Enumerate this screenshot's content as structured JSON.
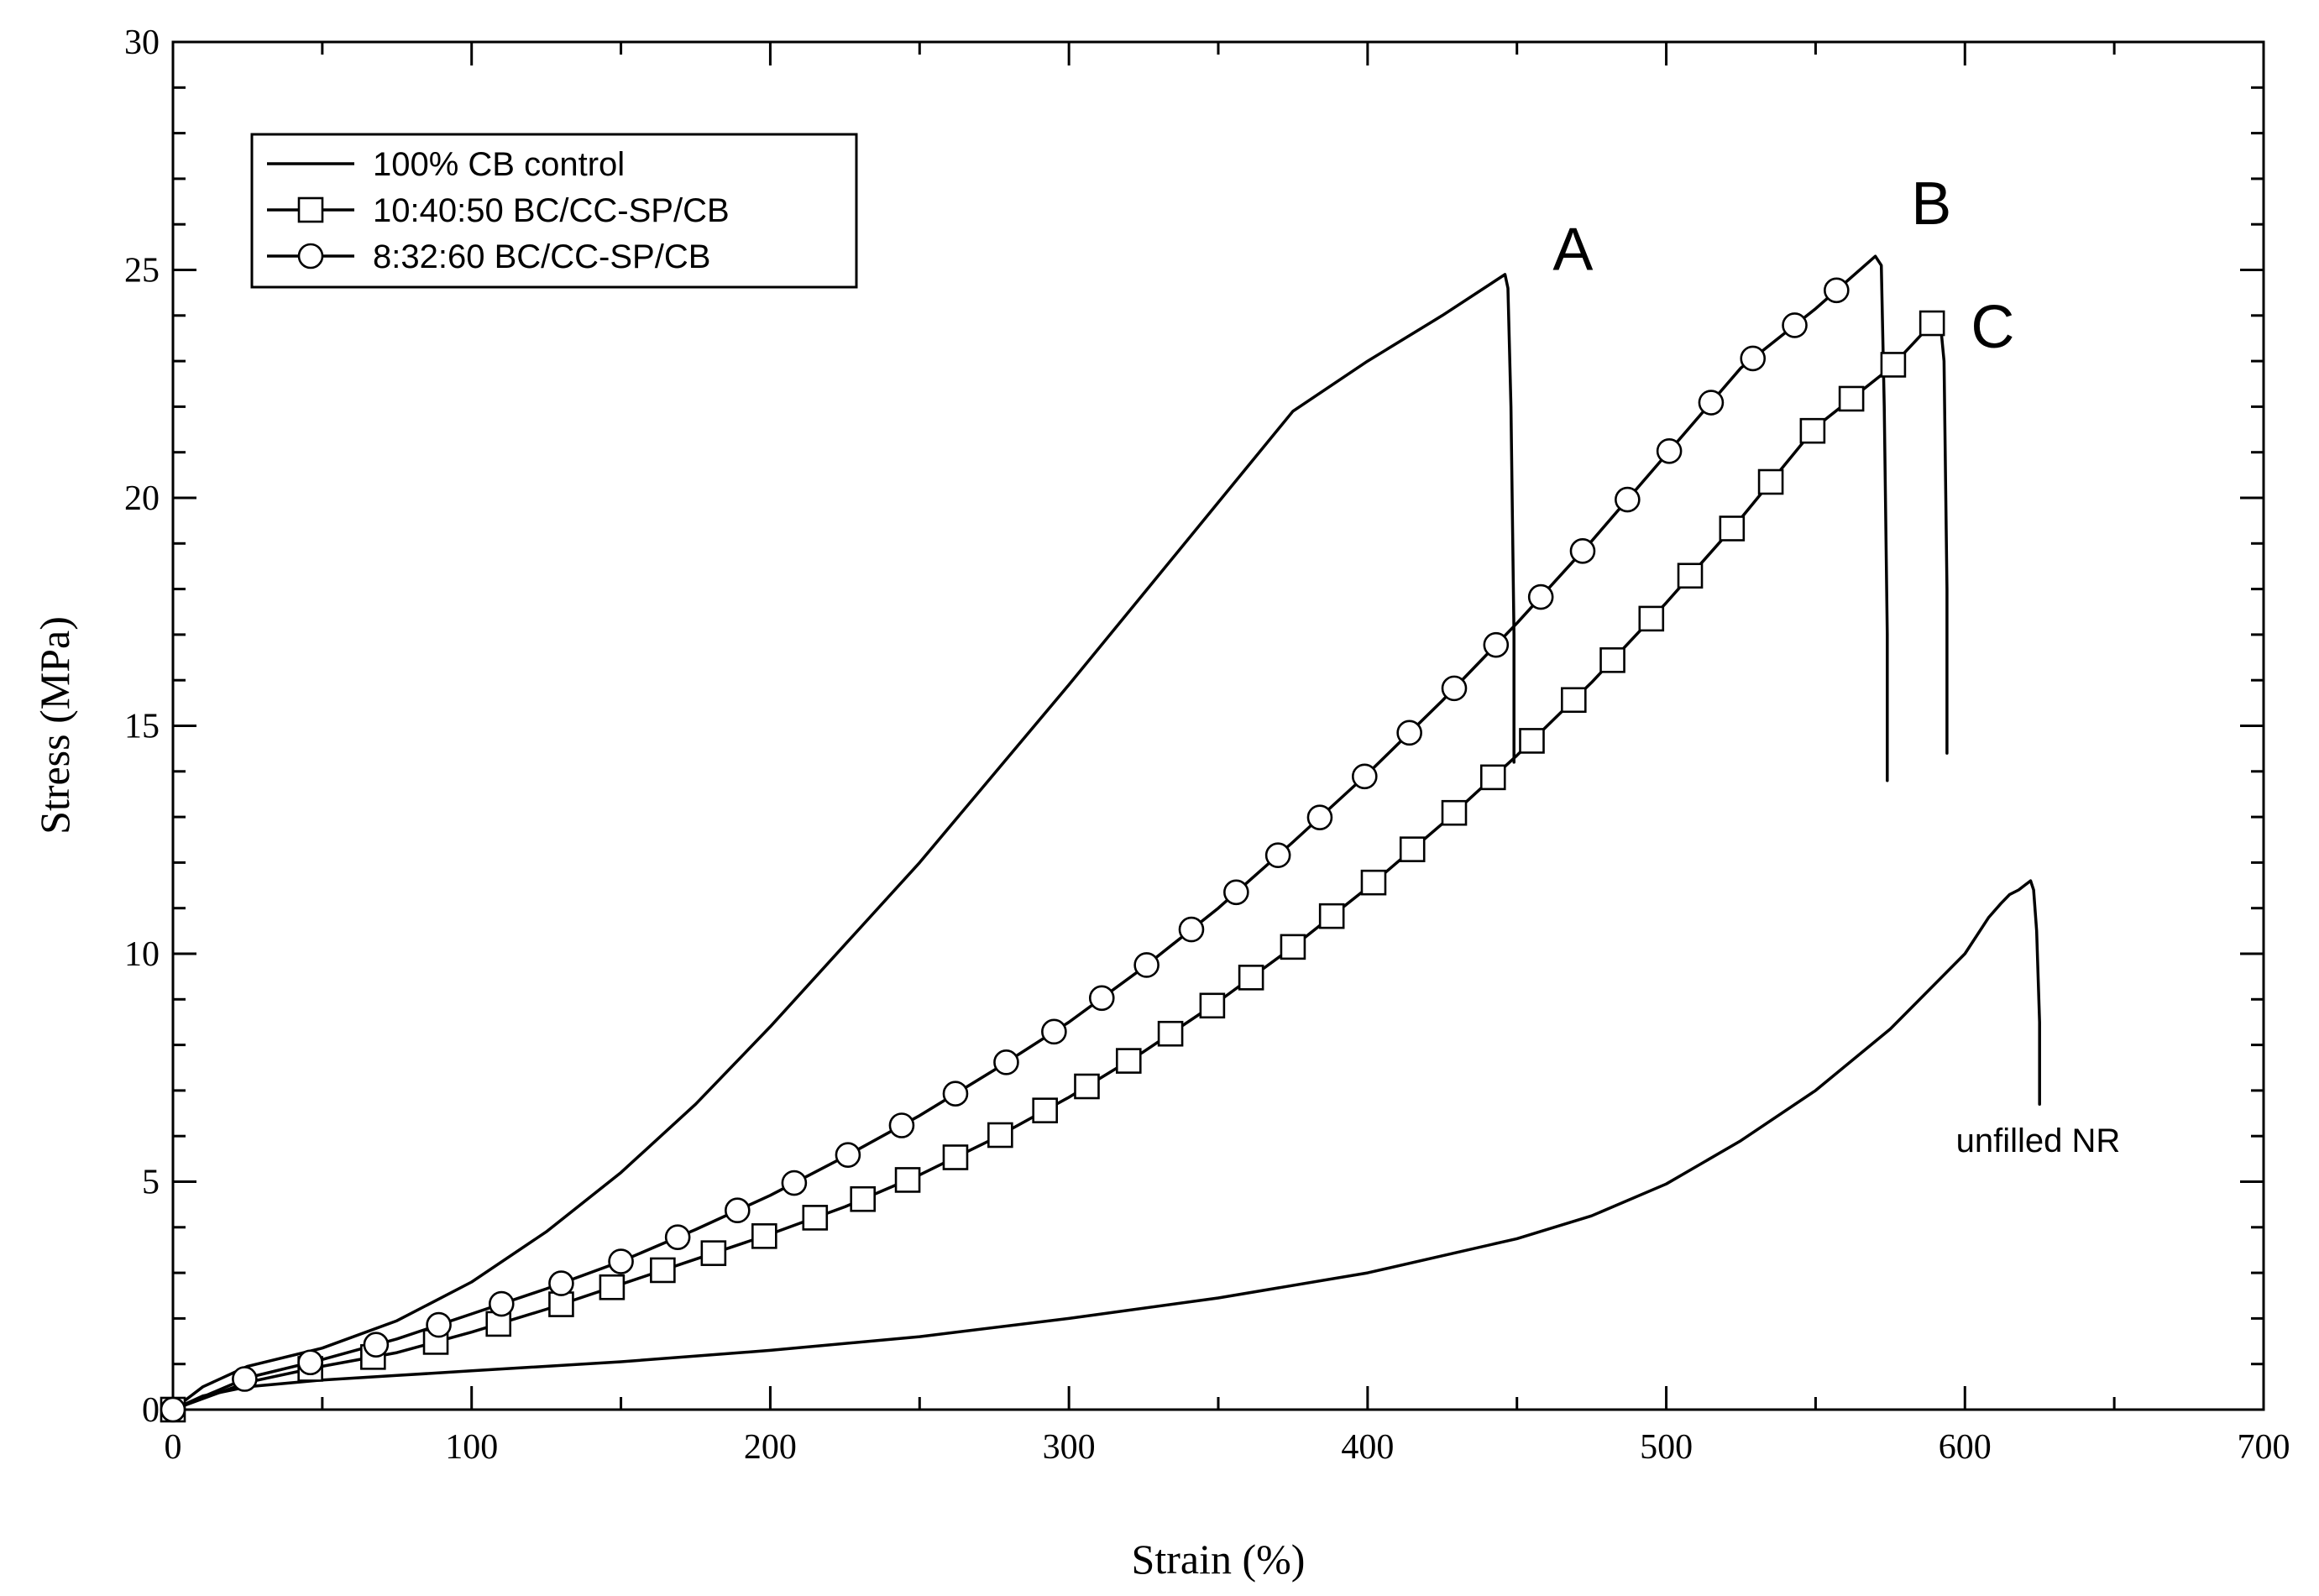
{
  "chart_data": {
    "type": "line",
    "title": "",
    "xlabel": "Strain (%)",
    "ylabel": "Stress (MPa)",
    "xlim": [
      0,
      700
    ],
    "ylim": [
      0,
      30
    ],
    "xticks": [
      0,
      100,
      200,
      300,
      400,
      500,
      600,
      700
    ],
    "yticks": [
      0,
      5,
      10,
      15,
      20,
      25,
      30
    ],
    "grid": false,
    "legend_position": "top-left",
    "series": [
      {
        "name": "100% CB control",
        "marker": "none",
        "x": [
          0,
          10,
          25,
          50,
          75,
          100,
          125,
          150,
          175,
          200,
          225,
          250,
          275,
          300,
          325,
          350,
          375,
          400,
          425,
          446,
          447,
          448,
          449,
          449
        ],
        "y": [
          0,
          0.5,
          0.95,
          1.35,
          1.95,
          2.8,
          3.9,
          5.2,
          6.7,
          8.4,
          10.2,
          12.0,
          13.95,
          15.9,
          17.9,
          19.9,
          21.9,
          23.0,
          24.0,
          24.9,
          24.6,
          22.0,
          17.0,
          14.2
        ]
      },
      {
        "name": "10:40:50 BC/CC-SP/CB",
        "marker": "square",
        "marker_x": [
          0,
          46,
          67,
          88,
          109,
          130,
          147,
          164,
          181,
          198,
          215,
          231,
          246,
          262,
          277,
          292,
          306,
          320,
          334,
          348,
          361,
          375,
          388,
          402,
          415,
          429,
          442,
          455,
          469,
          482,
          495,
          508,
          522,
          535,
          549,
          562,
          576,
          589
        ],
        "x": [
          0,
          25,
          50,
          75,
          100,
          125,
          150,
          175,
          200,
          225,
          250,
          275,
          300,
          325,
          350,
          375,
          400,
          425,
          450,
          475,
          500,
          525,
          550,
          575,
          590,
          592,
          593,
          594,
          594
        ],
        "y": [
          0,
          0.6,
          0.95,
          1.25,
          1.7,
          2.2,
          2.75,
          3.3,
          3.85,
          4.45,
          5.15,
          5.95,
          6.85,
          7.85,
          8.95,
          10.15,
          11.45,
          12.85,
          14.35,
          15.95,
          17.7,
          19.55,
          21.55,
          22.85,
          23.9,
          23.7,
          23.0,
          18.0,
          14.4
        ]
      },
      {
        "name": "8:32:60 BC/CC-SP/CB",
        "marker": "circle",
        "marker_x": [
          0,
          24,
          46,
          68,
          89,
          110,
          130,
          150,
          169,
          189,
          208,
          226,
          244,
          262,
          279,
          295,
          311,
          326,
          341,
          356,
          370,
          384,
          399,
          414,
          429,
          443,
          458,
          472,
          487,
          501,
          515,
          529,
          543,
          557
        ],
        "x": [
          0,
          25,
          50,
          75,
          100,
          125,
          150,
          175,
          200,
          225,
          250,
          275,
          300,
          325,
          350,
          375,
          400,
          425,
          450,
          475,
          500,
          525,
          550,
          570,
          572,
          573,
          574,
          574
        ],
        "y": [
          0,
          0.7,
          1.1,
          1.55,
          2.1,
          2.65,
          3.25,
          3.95,
          4.7,
          5.55,
          6.45,
          7.45,
          8.5,
          9.7,
          11.0,
          12.45,
          13.95,
          15.55,
          17.25,
          19.05,
          20.95,
          22.85,
          24.15,
          25.3,
          25.1,
          22.0,
          17.0,
          13.8
        ]
      },
      {
        "name": "unfilled NR",
        "marker": "none",
        "x": [
          0,
          10,
          25,
          50,
          75,
          100,
          150,
          200,
          250,
          300,
          350,
          400,
          450,
          475,
          500,
          525,
          550,
          575,
          600,
          608,
          612,
          615,
          618,
          620,
          622,
          623,
          624,
          625,
          625
        ],
        "y": [
          0,
          0.3,
          0.5,
          0.65,
          0.75,
          0.85,
          1.05,
          1.3,
          1.6,
          2.0,
          2.45,
          3.0,
          3.75,
          4.25,
          4.95,
          5.9,
          7.0,
          8.35,
          10.0,
          10.8,
          11.1,
          11.3,
          11.4,
          11.5,
          11.6,
          11.4,
          10.5,
          8.5,
          6.7
        ]
      }
    ],
    "annotations": [
      {
        "text": "A",
        "x": 462,
        "y": 25.0
      },
      {
        "text": "B",
        "x": 582,
        "y": 26.0
      },
      {
        "text": "C",
        "x": 602,
        "y": 23.3
      },
      {
        "text": "unfilled NR",
        "x": 597,
        "y": 5.65
      }
    ]
  }
}
